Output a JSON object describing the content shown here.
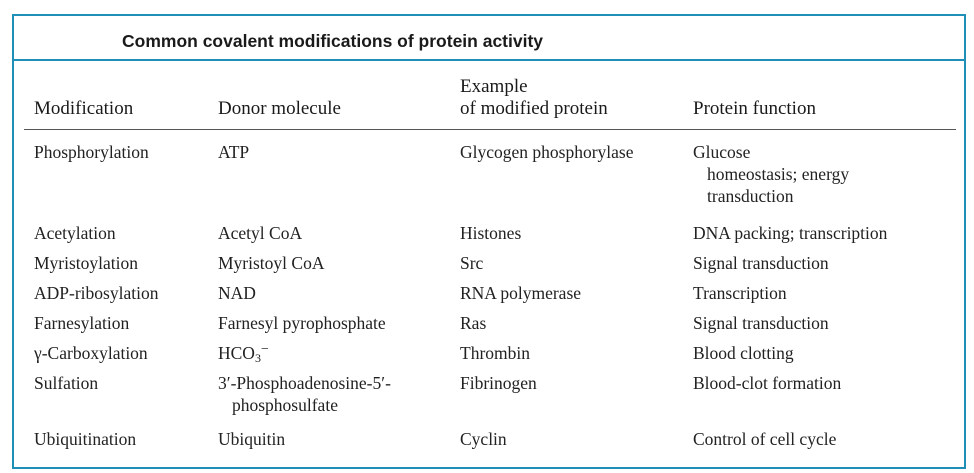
{
  "table": {
    "title": "Common covalent modifications of protein activity",
    "headers": {
      "modification": "Modification",
      "donor": "Donor molecule",
      "example_line1": "Example",
      "example_line2": "of modified protein",
      "function": "Protein function"
    },
    "rows": [
      {
        "modification": "Phosphorylation",
        "donor": "ATP",
        "example": "Glycogen phosphorylase",
        "function_line1": "Glucose",
        "function_line2": "homeostasis; energy",
        "function_line3": "transduction"
      },
      {
        "modification": "Acetylation",
        "donor": "Acetyl CoA",
        "example": "Histones",
        "function": "DNA packing; transcription"
      },
      {
        "modification": "Myristoylation",
        "donor": "Myristoyl CoA",
        "example": "Src",
        "function": "Signal transduction"
      },
      {
        "modification": "ADP-ribosylation",
        "donor": "NAD",
        "example": "RNA polymerase",
        "function": "Transcription"
      },
      {
        "modification": "Farnesylation",
        "donor": "Farnesyl pyrophosphate",
        "example": "Ras",
        "function": "Signal transduction"
      },
      {
        "modification": "γ-Carboxylation",
        "donor_main": "HCO",
        "donor_sub": "3",
        "donor_sup": "−",
        "example": "Thrombin",
        "function": "Blood clotting"
      },
      {
        "modification": "Sulfation",
        "donor_line1": "3′-Phosphoadenosine-5′-",
        "donor_line2": "phosphosulfate",
        "example": "Fibrinogen",
        "function": "Blood-clot formation"
      },
      {
        "modification": "Ubiquitination",
        "donor": "Ubiquitin",
        "example": "Cyclin",
        "function": "Control of cell cycle"
      }
    ]
  }
}
